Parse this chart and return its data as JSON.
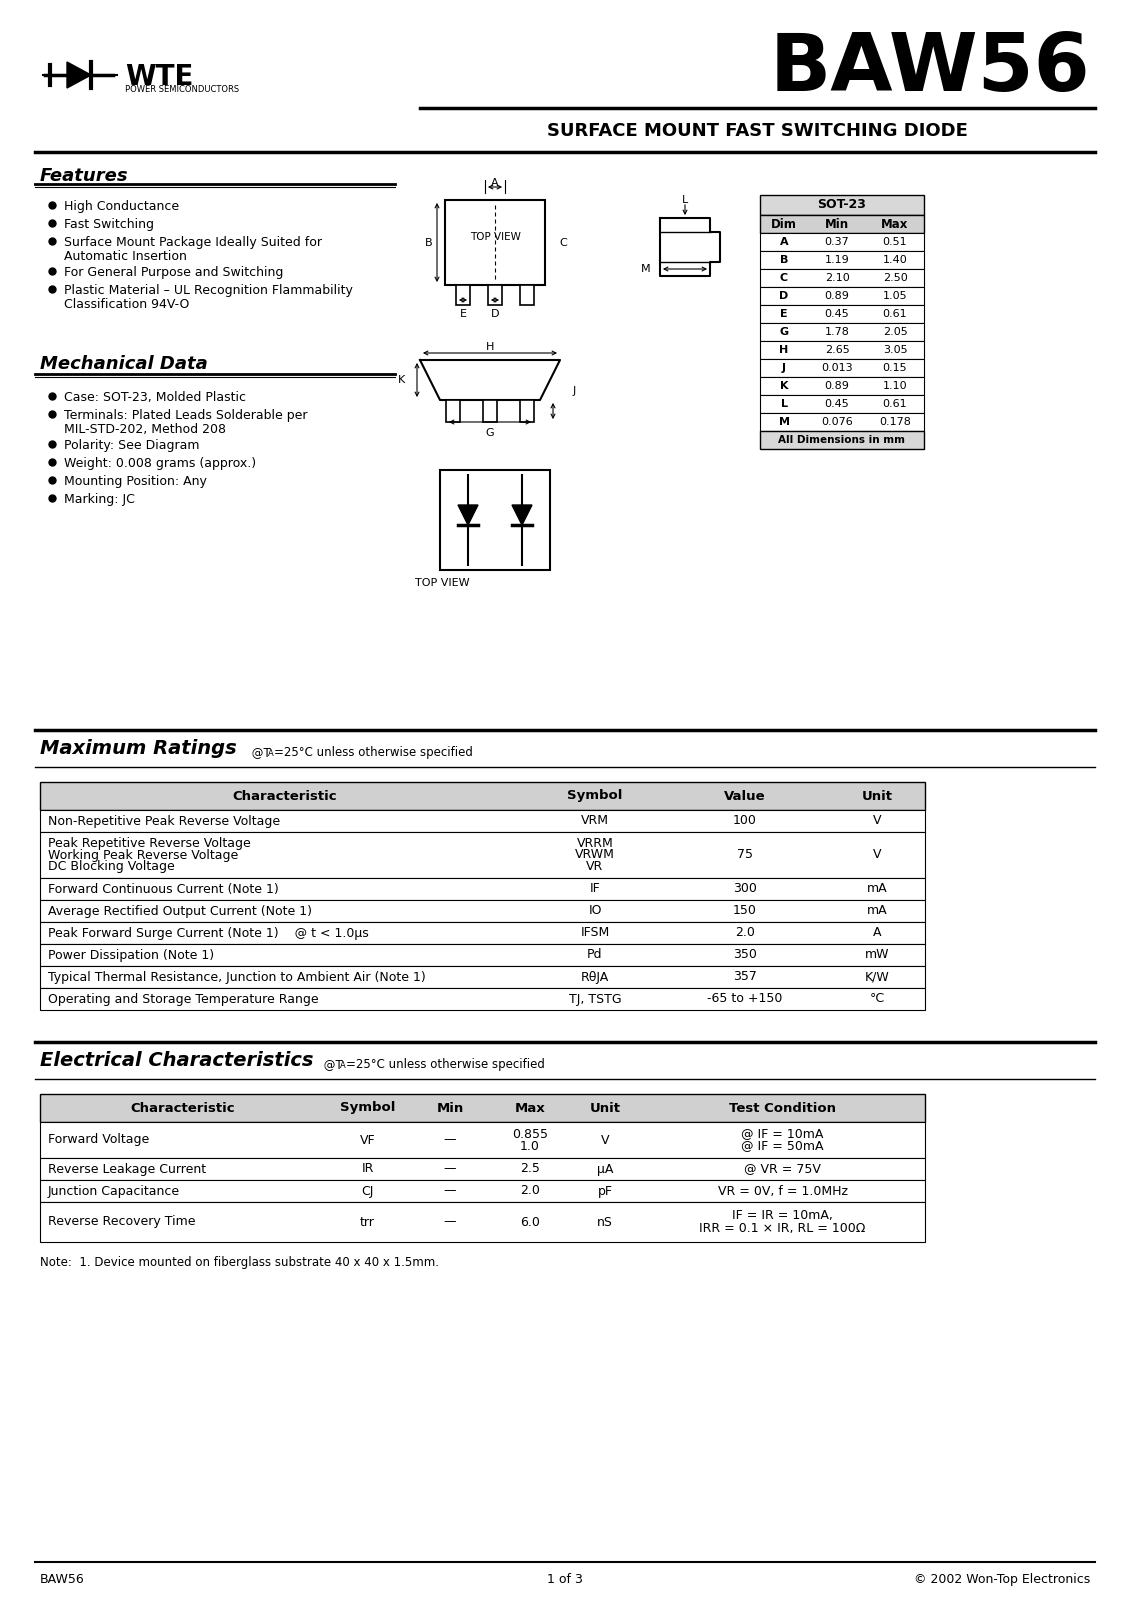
{
  "title": "BAW56",
  "subtitle": "SURFACE MOUNT FAST SWITCHING DIODE",
  "company": "WTE",
  "company_sub": "POWER SEMICONDUCTORS",
  "features_title": "Features",
  "features": [
    "High Conductance",
    "Fast Switching",
    "Surface Mount Package Ideally Suited for\nAutomatic Insertion",
    "For General Purpose and Switching",
    "Plastic Material – UL Recognition Flammability\nClassification 94V-O"
  ],
  "mech_title": "Mechanical Data",
  "mech_items": [
    "Case: SOT-23, Molded Plastic",
    "Terminals: Plated Leads Solderable per\nMIL-STD-202, Method 208",
    "Polarity: See Diagram",
    "Weight: 0.008 grams (approx.)",
    "Mounting Position: Any",
    "Marking: JC"
  ],
  "sot23_table": {
    "header": [
      "Dim",
      "Min",
      "Max"
    ],
    "rows": [
      [
        "A",
        "0.37",
        "0.51"
      ],
      [
        "B",
        "1.19",
        "1.40"
      ],
      [
        "C",
        "2.10",
        "2.50"
      ],
      [
        "D",
        "0.89",
        "1.05"
      ],
      [
        "E",
        "0.45",
        "0.61"
      ],
      [
        "G",
        "1.78",
        "2.05"
      ],
      [
        "H",
        "2.65",
        "3.05"
      ],
      [
        "J",
        "0.013",
        "0.15"
      ],
      [
        "K",
        "0.89",
        "1.10"
      ],
      [
        "L",
        "0.45",
        "0.61"
      ],
      [
        "M",
        "0.076",
        "0.178"
      ]
    ],
    "footer": "All Dimensions in mm"
  },
  "max_ratings_title": "Maximum Ratings",
  "max_ratings_subtitle": "@TA=25°C unless otherwise specified",
  "max_ratings_headers": [
    "Characteristic",
    "Symbol",
    "Value",
    "Unit"
  ],
  "max_ratings_rows": [
    [
      "Non-Repetitive Peak Reverse Voltage",
      "VRM",
      "100",
      "V"
    ],
    [
      "Peak Repetitive Reverse Voltage\nWorking Peak Reverse Voltage\nDC Blocking Voltage",
      "VRRM\nVRWM\nVR",
      "75",
      "V"
    ],
    [
      "Forward Continuous Current (Note 1)",
      "IF",
      "300",
      "mA"
    ],
    [
      "Average Rectified Output Current (Note 1)",
      "IO",
      "150",
      "mA"
    ],
    [
      "Peak Forward Surge Current (Note 1)    @ t < 1.0μs",
      "IFSM",
      "2.0",
      "A"
    ],
    [
      "Power Dissipation (Note 1)",
      "Pd",
      "350",
      "mW"
    ],
    [
      "Typical Thermal Resistance, Junction to Ambient Air (Note 1)",
      "RθJA",
      "357",
      "K/W"
    ],
    [
      "Operating and Storage Temperature Range",
      "TJ, TSTG",
      "-65 to +150",
      "°C"
    ]
  ],
  "elec_title": "Electrical Characteristics",
  "elec_subtitle": "@TA=25°C unless otherwise specified",
  "elec_headers": [
    "Characteristic",
    "Symbol",
    "Min",
    "Max",
    "Unit",
    "Test Condition"
  ],
  "elec_rows": [
    [
      "Forward Voltage",
      "VF",
      "—",
      "0.855\n1.0",
      "V",
      "@ IF = 10mA\n@ IF = 50mA"
    ],
    [
      "Reverse Leakage Current",
      "IR",
      "—",
      "2.5",
      "μA",
      "@ VR = 75V"
    ],
    [
      "Junction Capacitance",
      "CJ",
      "—",
      "2.0",
      "pF",
      "VR = 0V, f = 1.0MHz"
    ],
    [
      "Reverse Recovery Time",
      "trr",
      "—",
      "6.0",
      "nS",
      "IF = IR = 10mA,\nIRR = 0.1 × IR, RL = 100Ω"
    ]
  ],
  "note": "Note:  1. Device mounted on fiberglass substrate 40 x 40 x 1.5mm.",
  "footer_left": "BAW56",
  "footer_center": "1 of 3",
  "footer_right": "© 2002 Won-Top Electronics",
  "bg_color": "#ffffff",
  "text_color": "#000000"
}
